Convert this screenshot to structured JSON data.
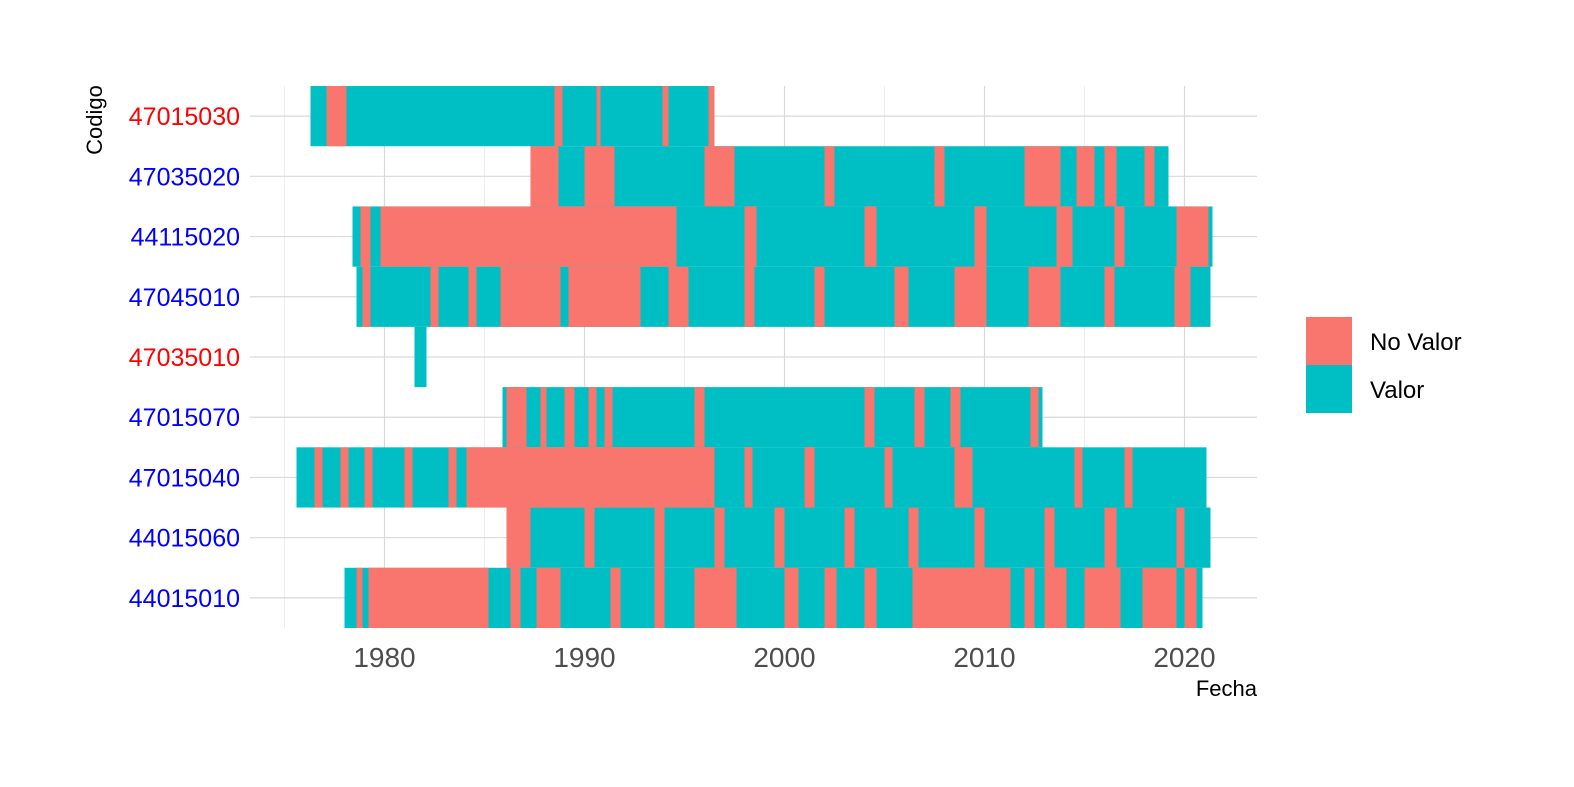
{
  "chart_data": {
    "type": "heatmap",
    "title": "",
    "xlabel": "Fecha",
    "ylabel": "Codigo",
    "xlim": [
      1974.6,
      1998.6
    ],
    "x_ticks": [
      1980,
      1990,
      2000,
      2010,
      2020
    ],
    "x_tick_labels": [
      "1980",
      "1990",
      "2000",
      "2010",
      "2020"
    ],
    "grid": true,
    "legend_position": "right",
    "colors": {
      "No Valor": "#F8766D",
      "Valor": "#00BFC4"
    },
    "legend": [
      {
        "label": "No Valor",
        "color": "#F8766D"
      },
      {
        "label": "Valor",
        "color": "#00BFC4"
      }
    ],
    "categories": [
      "47015030",
      "47035020",
      "44115020",
      "47045010",
      "47035010",
      "47015070",
      "47015040",
      "44015060",
      "44015010"
    ],
    "category_colors": [
      "#FF0000",
      "#0000FF",
      "#0000FF",
      "#0000FF",
      "#FF0000",
      "#0000FF",
      "#0000FF",
      "#0000FF",
      "#0000FF"
    ],
    "series": [
      {
        "codigo": "47015030",
        "start": 1976.3,
        "end": 1996.5,
        "no_valor": [
          [
            1977.1,
            1978.1
          ],
          [
            1988.5,
            1988.9
          ],
          [
            1990.6,
            1990.8
          ],
          [
            1993.9,
            1994.2
          ],
          [
            1996.2,
            1996.5
          ]
        ]
      },
      {
        "codigo": "47035020",
        "start": 1987.3,
        "end": 2019.2,
        "no_valor": [
          [
            1987.3,
            1988.7
          ],
          [
            1990.0,
            1991.5
          ],
          [
            1996.0,
            1997.5
          ],
          [
            2002.0,
            2002.5
          ],
          [
            2007.5,
            2008.0
          ],
          [
            2012.0,
            2013.8
          ],
          [
            2014.6,
            2015.5
          ],
          [
            2016.0,
            2016.6
          ],
          [
            2018.0,
            2018.5
          ]
        ]
      },
      {
        "codigo": "44115020",
        "start": 1978.4,
        "end": 2021.4,
        "no_valor": [
          [
            1978.8,
            1979.3
          ],
          [
            1979.8,
            1994.6
          ],
          [
            1998.0,
            1998.6
          ],
          [
            2004.0,
            2004.6
          ],
          [
            2009.5,
            2010.1
          ],
          [
            2013.6,
            2014.4
          ],
          [
            2016.5,
            2017.0
          ],
          [
            2019.6,
            2021.2
          ]
        ]
      },
      {
        "codigo": "47045010",
        "start": 1978.6,
        "end": 2021.3,
        "no_valor": [
          [
            1978.9,
            1979.3
          ],
          [
            1982.3,
            1982.7
          ],
          [
            1984.2,
            1984.6
          ],
          [
            1985.8,
            1988.8
          ],
          [
            1989.2,
            1992.8
          ],
          [
            1994.2,
            1995.2
          ],
          [
            1998.0,
            1998.5
          ],
          [
            2001.5,
            2002.0
          ],
          [
            2005.5,
            2006.2
          ],
          [
            2008.5,
            2010.1
          ],
          [
            2012.2,
            2013.8
          ],
          [
            2016.0,
            2016.5
          ],
          [
            2019.5,
            2020.3
          ]
        ]
      },
      {
        "codigo": "47035010",
        "start": 1981.5,
        "end": 1982.1,
        "no_valor": []
      },
      {
        "codigo": "47015070",
        "start": 1985.9,
        "end": 2012.9,
        "no_valor": [
          [
            1986.1,
            1987.1
          ],
          [
            1987.8,
            1988.1
          ],
          [
            1989.0,
            1989.5
          ],
          [
            1990.2,
            1990.6
          ],
          [
            1991.0,
            1991.4
          ],
          [
            1995.5,
            1996.0
          ],
          [
            2004.0,
            2004.5
          ],
          [
            2006.5,
            2007.0
          ],
          [
            2008.3,
            2008.8
          ],
          [
            2012.3,
            2012.7
          ]
        ]
      },
      {
        "codigo": "47015040",
        "start": 1975.6,
        "end": 2021.1,
        "no_valor": [
          [
            1976.5,
            1976.9
          ],
          [
            1977.8,
            1978.2
          ],
          [
            1979.0,
            1979.4
          ],
          [
            1981.0,
            1981.4
          ],
          [
            1983.2,
            1983.6
          ],
          [
            1984.1,
            1996.5
          ],
          [
            1998.0,
            1998.4
          ],
          [
            2001.0,
            2001.5
          ],
          [
            2005.0,
            2005.4
          ],
          [
            2008.5,
            2009.4
          ],
          [
            2014.5,
            2014.9
          ],
          [
            2017.0,
            2017.4
          ]
        ]
      },
      {
        "codigo": "44015060",
        "start": 1986.1,
        "end": 2021.3,
        "no_valor": [
          [
            1986.1,
            1987.3
          ],
          [
            1990.0,
            1990.5
          ],
          [
            1993.5,
            1994.0
          ],
          [
            1996.5,
            1997.0
          ],
          [
            1999.5,
            2000.0
          ],
          [
            2003.0,
            2003.5
          ],
          [
            2006.2,
            2006.7
          ],
          [
            2009.5,
            2010.0
          ],
          [
            2013.0,
            2013.5
          ],
          [
            2016.0,
            2016.6
          ],
          [
            2019.6,
            2020.0
          ]
        ]
      },
      {
        "codigo": "44015010",
        "start": 1978.0,
        "end": 2020.9,
        "no_valor": [
          [
            1978.6,
            1978.9
          ],
          [
            1979.2,
            1985.2
          ],
          [
            1986.3,
            1986.8
          ],
          [
            1987.6,
            1988.8
          ],
          [
            1991.3,
            1991.8
          ],
          [
            1993.5,
            1994.0
          ],
          [
            1995.5,
            1997.6
          ],
          [
            2000.0,
            2000.7
          ],
          [
            2002.0,
            2002.6
          ],
          [
            2004.0,
            2004.6
          ],
          [
            2006.4,
            2011.3
          ],
          [
            2012.0,
            2012.5
          ],
          [
            2013.0,
            2014.1
          ],
          [
            2015.0,
            2016.8
          ],
          [
            2017.9,
            2019.6
          ],
          [
            2020.0,
            2020.6
          ]
        ]
      }
    ]
  }
}
